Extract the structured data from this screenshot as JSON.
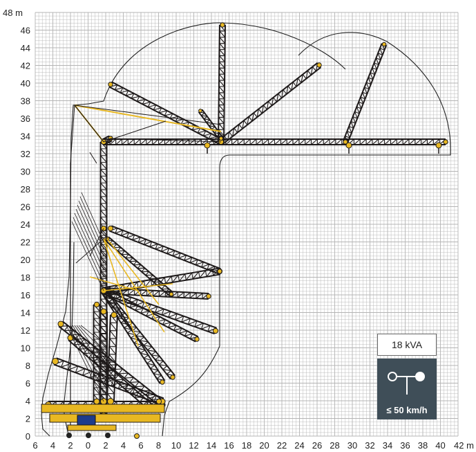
{
  "chart_data": {
    "type": "diagram",
    "title": "",
    "x_axis": {
      "unit": "m",
      "tick_labels": [
        "6",
        "4",
        "2",
        "0",
        "2",
        "4",
        "6",
        "8",
        "10",
        "12",
        "14",
        "16",
        "18",
        "20",
        "22",
        "24",
        "26",
        "28",
        "30",
        "32",
        "34",
        "36",
        "38",
        "40",
        "42 m"
      ]
    },
    "y_axis": {
      "unit": "m",
      "tick_labels": [
        "0",
        "2",
        "4",
        "6",
        "8",
        "10",
        "12",
        "14",
        "16",
        "18",
        "20",
        "22",
        "24",
        "26",
        "28",
        "30",
        "32",
        "34",
        "36",
        "38",
        "40",
        "42",
        "44",
        "46",
        "48 m"
      ]
    },
    "grid": true,
    "colors": {
      "boom_yellow": "#e8b822",
      "lattice_black": "#1e1a1a",
      "grid": "#b4b4b4",
      "box_dark": "#3f4e58"
    }
  },
  "power": {
    "label": "18 kVA"
  },
  "wind": {
    "icon": "anemometer-icon",
    "label": "≤ 50 km/h"
  }
}
